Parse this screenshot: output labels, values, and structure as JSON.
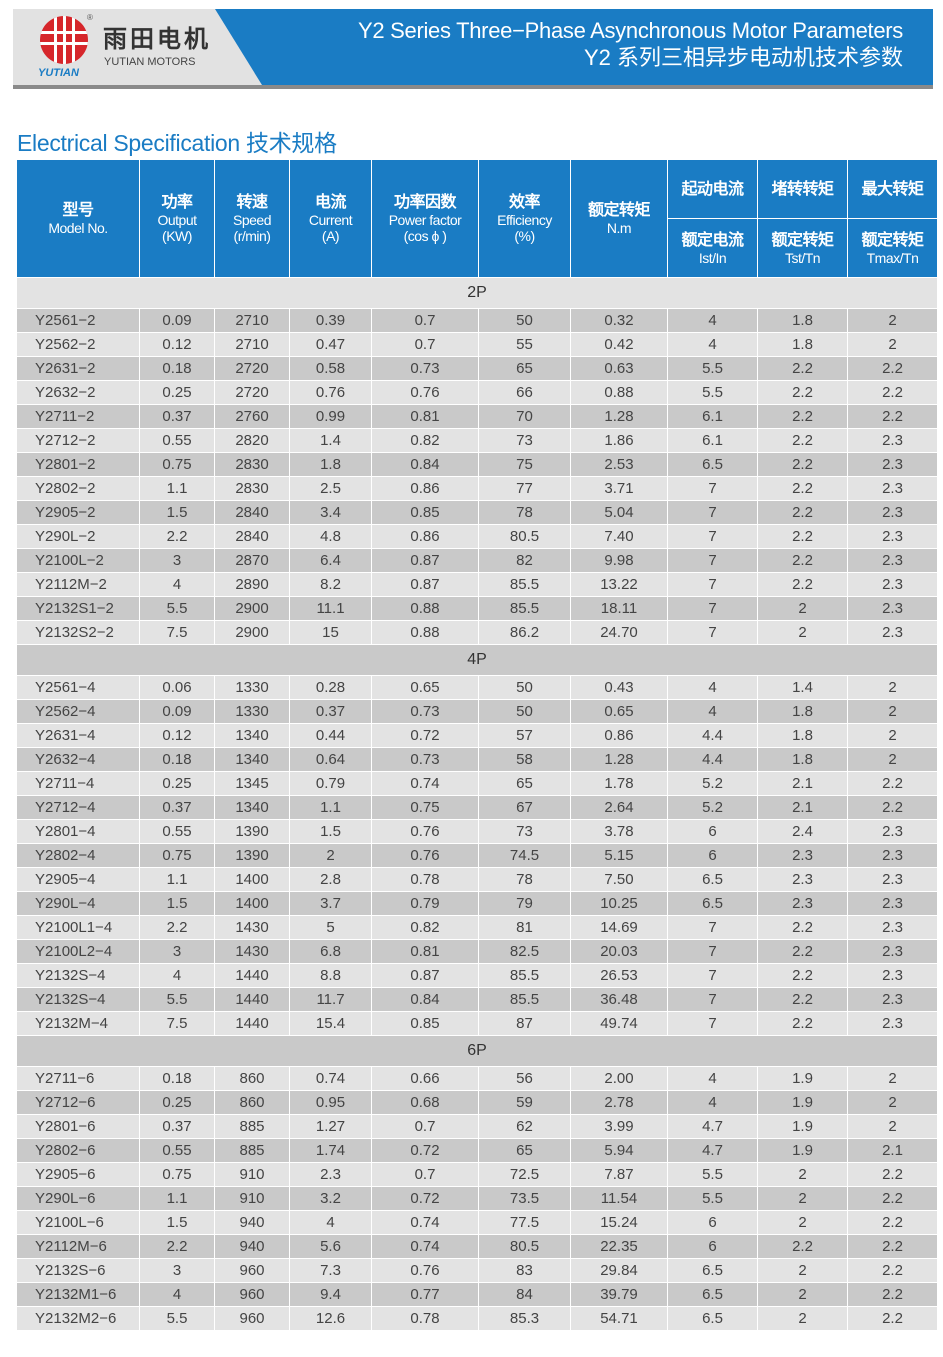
{
  "brand": {
    "name_cn": "雨田电机",
    "name_en": "YUTIAN MOTORS",
    "logo_text": "YUTIAN",
    "registered": "®"
  },
  "header": {
    "title_en": "Y2 Series Three−Phase Asynchronous Motor Parameters",
    "title_cn": "Y2 系列三相异步电动机技术参数"
  },
  "section_title": "Electrical Specification 技术规格",
  "colors": {
    "accent": "#1a7cc4",
    "logo_red": "#d6262b",
    "row_light": "#e3e3e3",
    "row_dark": "#c9c9c9"
  },
  "table": {
    "headers": {
      "model": {
        "cn": "型号",
        "en": "Model No."
      },
      "output": {
        "cn": "功率",
        "en": "Output",
        "unit": "(KW)"
      },
      "speed": {
        "cn": "转速",
        "en": "Speed",
        "unit": "(r/min)"
      },
      "current": {
        "cn": "电流",
        "en": "Current",
        "unit": "(A)"
      },
      "pf": {
        "cn": "功率因数",
        "en": "Power factor",
        "unit": "(cos ϕ )"
      },
      "eff": {
        "cn": "效率",
        "en": "Efficiency",
        "unit": "(%)"
      },
      "torque": {
        "cn": "额定转矩",
        "en": "N.m"
      },
      "ist": {
        "top": "起动电流",
        "cn": "额定电流",
        "en": "Ist/In"
      },
      "tst": {
        "top": "堵转转矩",
        "cn": "额定转矩",
        "en": "Tst/Tn"
      },
      "tmax": {
        "top": "最大转矩",
        "cn": "额定转矩",
        "en": "Tmax/Tn"
      }
    },
    "groups": [
      {
        "label": "2P",
        "rows": [
          [
            "Y2561−2",
            "0.09",
            "2710",
            "0.39",
            "0.7",
            "50",
            "0.32",
            "4",
            "1.8",
            "2"
          ],
          [
            "Y2562−2",
            "0.12",
            "2710",
            "0.47",
            "0.7",
            "55",
            "0.42",
            "4",
            "1.8",
            "2"
          ],
          [
            "Y2631−2",
            "0.18",
            "2720",
            "0.58",
            "0.73",
            "65",
            "0.63",
            "5.5",
            "2.2",
            "2.2"
          ],
          [
            "Y2632−2",
            "0.25",
            "2720",
            "0.76",
            "0.76",
            "66",
            "0.88",
            "5.5",
            "2.2",
            "2.2"
          ],
          [
            "Y2711−2",
            "0.37",
            "2760",
            "0.99",
            "0.81",
            "70",
            "1.28",
            "6.1",
            "2.2",
            "2.2"
          ],
          [
            "Y2712−2",
            "0.55",
            "2820",
            "1.4",
            "0.82",
            "73",
            "1.86",
            "6.1",
            "2.2",
            "2.3"
          ],
          [
            "Y2801−2",
            "0.75",
            "2830",
            "1.8",
            "0.84",
            "75",
            "2.53",
            "6.5",
            "2.2",
            "2.3"
          ],
          [
            "Y2802−2",
            "1.1",
            "2830",
            "2.5",
            "0.86",
            "77",
            "3.71",
            "7",
            "2.2",
            "2.3"
          ],
          [
            "Y2905−2",
            "1.5",
            "2840",
            "3.4",
            "0.85",
            "78",
            "5.04",
            "7",
            "2.2",
            "2.3"
          ],
          [
            "Y290L−2",
            "2.2",
            "2840",
            "4.8",
            "0.86",
            "80.5",
            "7.40",
            "7",
            "2.2",
            "2.3"
          ],
          [
            "Y2100L−2",
            "3",
            "2870",
            "6.4",
            "0.87",
            "82",
            "9.98",
            "7",
            "2.2",
            "2.3"
          ],
          [
            "Y2112M−2",
            "4",
            "2890",
            "8.2",
            "0.87",
            "85.5",
            "13.22",
            "7",
            "2.2",
            "2.3"
          ],
          [
            "Y2132S1−2",
            "5.5",
            "2900",
            "11.1",
            "0.88",
            "85.5",
            "18.11",
            "7",
            "2",
            "2.3"
          ],
          [
            "Y2132S2−2",
            "7.5",
            "2900",
            "15",
            "0.88",
            "86.2",
            "24.70",
            "7",
            "2",
            "2.3"
          ]
        ]
      },
      {
        "label": "4P",
        "rows": [
          [
            "Y2561−4",
            "0.06",
            "1330",
            "0.28",
            "0.65",
            "50",
            "0.43",
            "4",
            "1.4",
            "2"
          ],
          [
            "Y2562−4",
            "0.09",
            "1330",
            "0.37",
            "0.73",
            "50",
            "0.65",
            "4",
            "1.8",
            "2"
          ],
          [
            "Y2631−4",
            "0.12",
            "1340",
            "0.44",
            "0.72",
            "57",
            "0.86",
            "4.4",
            "1.8",
            "2"
          ],
          [
            "Y2632−4",
            "0.18",
            "1340",
            "0.64",
            "0.73",
            "58",
            "1.28",
            "4.4",
            "1.8",
            "2"
          ],
          [
            "Y2711−4",
            "0.25",
            "1345",
            "0.79",
            "0.74",
            "65",
            "1.78",
            "5.2",
            "2.1",
            "2.2"
          ],
          [
            "Y2712−4",
            "0.37",
            "1340",
            "1.1",
            "0.75",
            "67",
            "2.64",
            "5.2",
            "2.1",
            "2.2"
          ],
          [
            "Y2801−4",
            "0.55",
            "1390",
            "1.5",
            "0.76",
            "73",
            "3.78",
            "6",
            "2.4",
            "2.3"
          ],
          [
            "Y2802−4",
            "0.75",
            "1390",
            "2",
            "0.76",
            "74.5",
            "5.15",
            "6",
            "2.3",
            "2.3"
          ],
          [
            "Y2905−4",
            "1.1",
            "1400",
            "2.8",
            "0.78",
            "78",
            "7.50",
            "6.5",
            "2.3",
            "2.3"
          ],
          [
            "Y290L−4",
            "1.5",
            "1400",
            "3.7",
            "0.79",
            "79",
            "10.25",
            "6.5",
            "2.3",
            "2.3"
          ],
          [
            "Y2100L1−4",
            "2.2",
            "1430",
            "5",
            "0.82",
            "81",
            "14.69",
            "7",
            "2.2",
            "2.3"
          ],
          [
            "Y2100L2−4",
            "3",
            "1430",
            "6.8",
            "0.81",
            "82.5",
            "20.03",
            "7",
            "2.2",
            "2.3"
          ],
          [
            "Y2132S−4",
            "4",
            "1440",
            "8.8",
            "0.87",
            "85.5",
            "26.53",
            "7",
            "2.2",
            "2.3"
          ],
          [
            "Y2132S−4",
            "5.5",
            "1440",
            "11.7",
            "0.84",
            "85.5",
            "36.48",
            "7",
            "2.2",
            "2.3"
          ],
          [
            "Y2132M−4",
            "7.5",
            "1440",
            "15.4",
            "0.85",
            "87",
            "49.74",
            "7",
            "2.2",
            "2.3"
          ]
        ]
      },
      {
        "label": "6P",
        "rows": [
          [
            "Y2711−6",
            "0.18",
            "860",
            "0.74",
            "0.66",
            "56",
            "2.00",
            "4",
            "1.9",
            "2"
          ],
          [
            "Y2712−6",
            "0.25",
            "860",
            "0.95",
            "0.68",
            "59",
            "2.78",
            "4",
            "1.9",
            "2"
          ],
          [
            "Y2801−6",
            "0.37",
            "885",
            "1.27",
            "0.7",
            "62",
            "3.99",
            "4.7",
            "1.9",
            "2"
          ],
          [
            "Y2802−6",
            "0.55",
            "885",
            "1.74",
            "0.72",
            "65",
            "5.94",
            "4.7",
            "1.9",
            "2.1"
          ],
          [
            "Y2905−6",
            "0.75",
            "910",
            "2.3",
            "0.7",
            "72.5",
            "7.87",
            "5.5",
            "2",
            "2.2"
          ],
          [
            "Y290L−6",
            "1.1",
            "910",
            "3.2",
            "0.72",
            "73.5",
            "11.54",
            "5.5",
            "2",
            "2.2"
          ],
          [
            "Y2100L−6",
            "1.5",
            "940",
            "4",
            "0.74",
            "77.5",
            "15.24",
            "6",
            "2",
            "2.2"
          ],
          [
            "Y2112M−6",
            "2.2",
            "940",
            "5.6",
            "0.74",
            "80.5",
            "22.35",
            "6",
            "2.2",
            "2.2"
          ],
          [
            "Y2132S−6",
            "3",
            "960",
            "7.3",
            "0.76",
            "83",
            "29.84",
            "6.5",
            "2",
            "2.2"
          ],
          [
            "Y2132M1−6",
            "4",
            "960",
            "9.4",
            "0.77",
            "84",
            "39.79",
            "6.5",
            "2",
            "2.2"
          ],
          [
            "Y2132M2−6",
            "5.5",
            "960",
            "12.6",
            "0.78",
            "85.3",
            "54.71",
            "6.5",
            "2",
            "2.2"
          ]
        ]
      }
    ]
  }
}
